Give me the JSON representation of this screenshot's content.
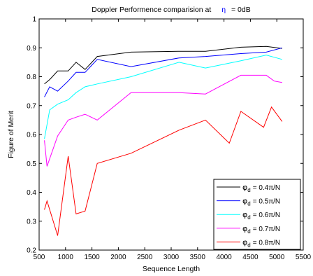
{
  "chart_data": {
    "type": "line",
    "title_prefix": "Doppler Performence comparision at",
    "title_symbol": "η",
    "title_suffix": "= 0dB",
    "xlabel": "Sequence Length",
    "ylabel": "Figure of Merit",
    "xlim": [
      500,
      5500
    ],
    "ylim": [
      0.2,
      1.0
    ],
    "xticks": [
      500,
      1000,
      1500,
      2000,
      2500,
      3000,
      3500,
      4000,
      4500,
      5000,
      5500
    ],
    "yticks": [
      0.2,
      0.3,
      0.4,
      0.5,
      0.6,
      0.7,
      0.8,
      0.9,
      1.0
    ],
    "yticklabels": [
      "0.2",
      "0.3",
      "0.4",
      "0.5",
      "0.6",
      "0.7",
      "0.8",
      "0.9",
      "1"
    ],
    "grid": false,
    "legend_position": "bottom-right",
    "series": [
      {
        "legend_symbol": "φ",
        "legend_sub": "d",
        "legend_suffix": "= 0.4π/N",
        "color": "#000000",
        "x": [
          600,
          700,
          850,
          1050,
          1200,
          1370,
          1600,
          2240,
          3150,
          3650,
          4320,
          4800,
          5100
        ],
        "y": [
          0.775,
          0.79,
          0.82,
          0.82,
          0.85,
          0.825,
          0.87,
          0.885,
          0.888,
          0.888,
          0.902,
          0.905,
          0.898
        ]
      },
      {
        "legend_symbol": "φ",
        "legend_sub": "d",
        "legend_suffix": "= 0.5π/N",
        "color": "#0000ff",
        "x": [
          600,
          700,
          850,
          1050,
          1200,
          1370,
          1600,
          2240,
          3150,
          3650,
          4320,
          4800,
          5100
        ],
        "y": [
          0.73,
          0.765,
          0.75,
          0.785,
          0.815,
          0.815,
          0.86,
          0.835,
          0.865,
          0.87,
          0.88,
          0.885,
          0.9
        ]
      },
      {
        "legend_symbol": "φ",
        "legend_sub": "d",
        "legend_suffix": "= 0.6π/N",
        "color": "#00ffff",
        "x": [
          600,
          700,
          850,
          1050,
          1200,
          1370,
          1600,
          2240,
          3150,
          3650,
          4320,
          4800,
          5100
        ],
        "y": [
          0.585,
          0.685,
          0.705,
          0.72,
          0.745,
          0.765,
          0.775,
          0.8,
          0.85,
          0.83,
          0.855,
          0.875,
          0.86
        ]
      },
      {
        "legend_symbol": "φ",
        "legend_sub": "d",
        "legend_suffix": "= 0.7π/N",
        "color": "#ff00ff",
        "x": [
          600,
          650,
          850,
          1050,
          1200,
          1370,
          1600,
          2240,
          3150,
          3650,
          4320,
          4800,
          4950,
          5100
        ],
        "y": [
          0.58,
          0.49,
          0.595,
          0.65,
          0.66,
          0.67,
          0.65,
          0.745,
          0.745,
          0.74,
          0.805,
          0.805,
          0.785,
          0.78
        ]
      },
      {
        "legend_symbol": "φ",
        "legend_sub": "d",
        "legend_suffix": "= 0.8π/N",
        "color": "#ff0000",
        "x": [
          600,
          650,
          850,
          1050,
          1200,
          1370,
          1600,
          2240,
          3150,
          3650,
          4100,
          4320,
          4750,
          4900,
          5100
        ],
        "y": [
          0.34,
          0.37,
          0.25,
          0.525,
          0.325,
          0.335,
          0.5,
          0.535,
          0.615,
          0.65,
          0.57,
          0.68,
          0.625,
          0.695,
          0.645
        ]
      }
    ]
  }
}
